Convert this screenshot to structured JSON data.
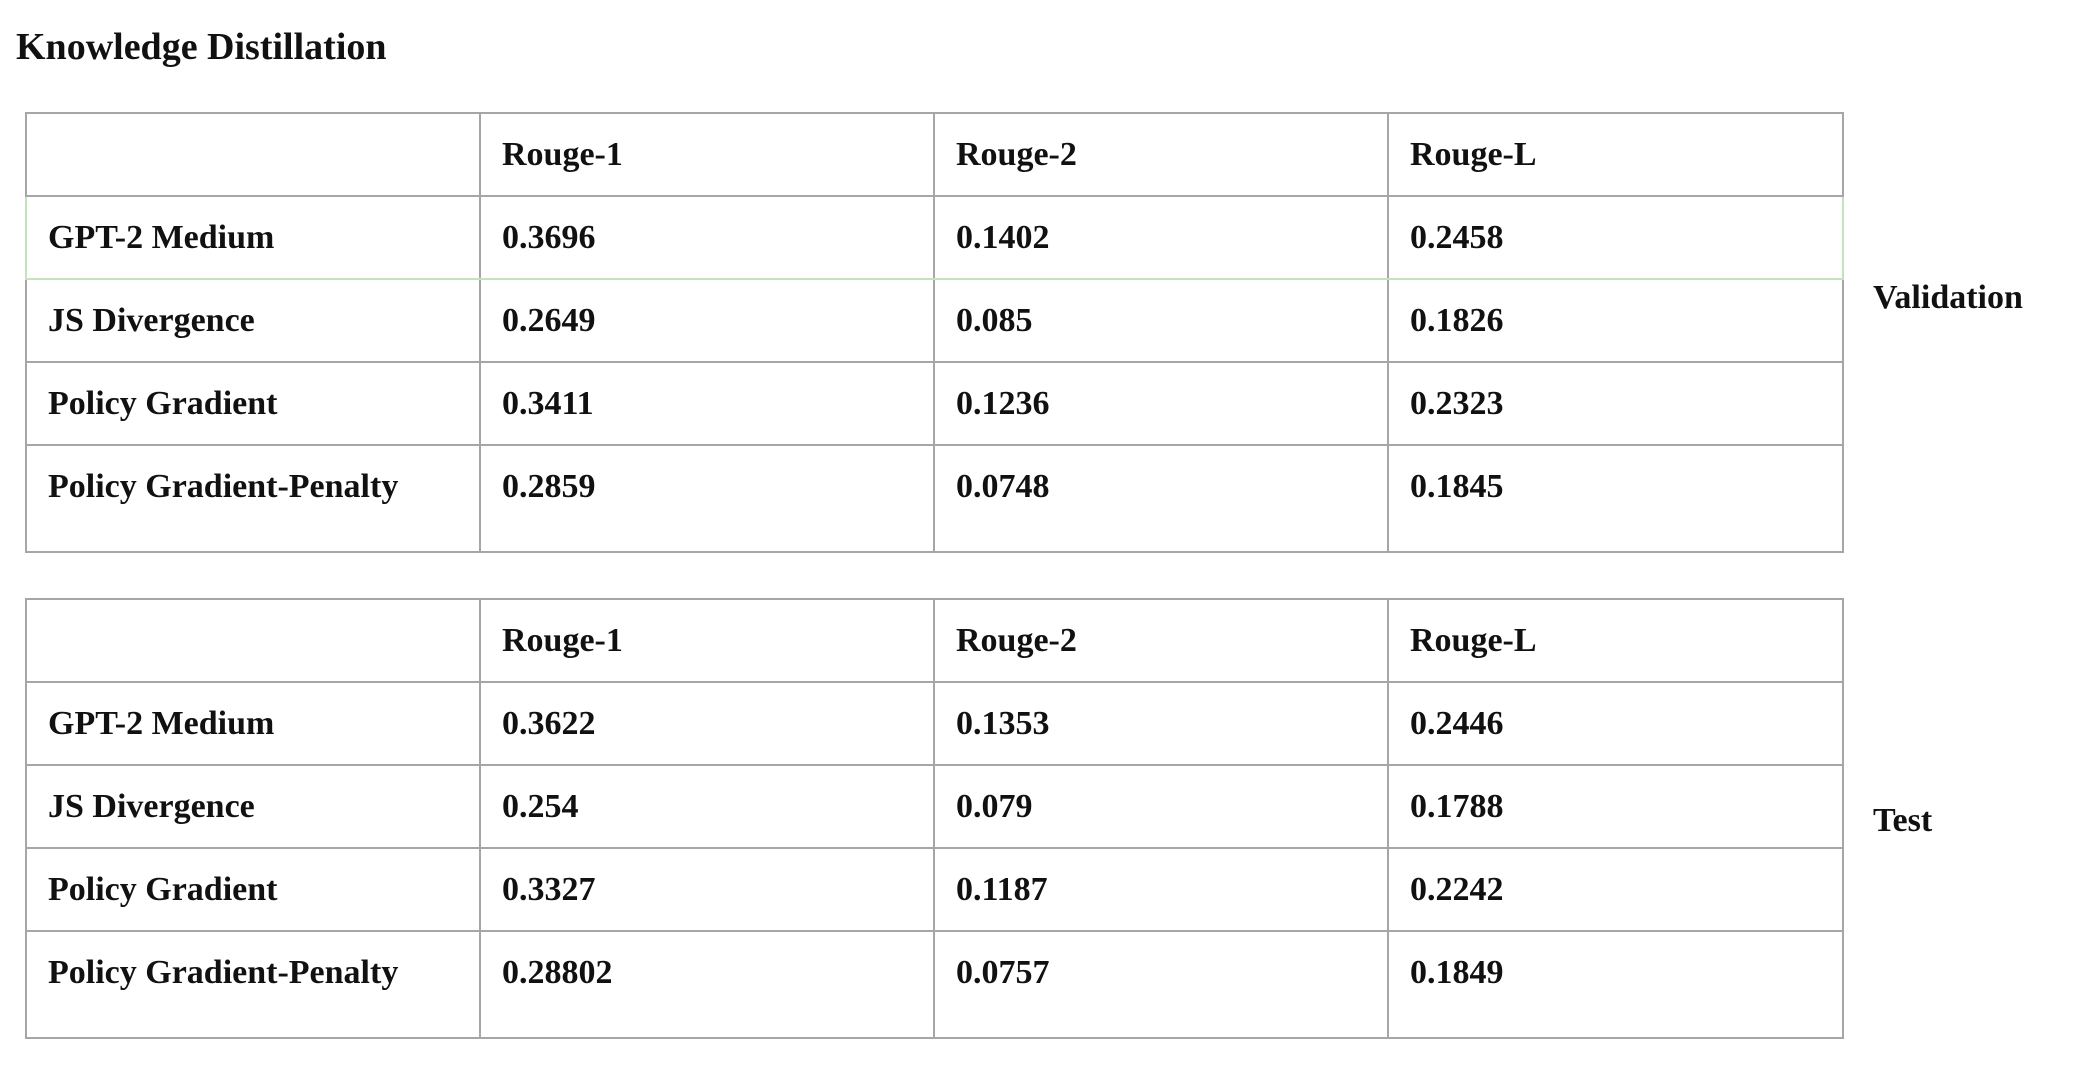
{
  "title": "Knowledge Distillation",
  "tables": [
    {
      "label": "Validation",
      "header": [
        "",
        "Rouge-1",
        "Rouge-2",
        "Rouge-L"
      ],
      "rows": [
        [
          "GPT-2 Medium",
          "0.3696",
          "0.1402",
          "0.2458"
        ],
        [
          "JS Divergence",
          "0.2649",
          "0.085",
          "0.1826"
        ],
        [
          "Policy Gradient",
          "0.3411",
          "0.1236",
          "0.2323"
        ],
        [
          "Policy Gradient-Penalty",
          "0.2859",
          "0.0748",
          "0.1845"
        ]
      ]
    },
    {
      "label": "Test",
      "header": [
        "",
        "Rouge-1",
        "Rouge-2",
        "Rouge-L"
      ],
      "rows": [
        [
          "GPT-2 Medium",
          "0.3622",
          "0.1353",
          "0.2446"
        ],
        [
          "JS Divergence",
          "0.254",
          "0.079",
          "0.1788"
        ],
        [
          "Policy Gradient",
          "0.3327",
          "0.1187",
          "0.2242"
        ],
        [
          "Policy Gradient-Penalty",
          "0.28802",
          "0.0757",
          "0.1849"
        ]
      ]
    }
  ],
  "colors": {
    "border": "#a6a6a6",
    "selected_row_border": "#c3e3bd",
    "text": "#111111"
  }
}
